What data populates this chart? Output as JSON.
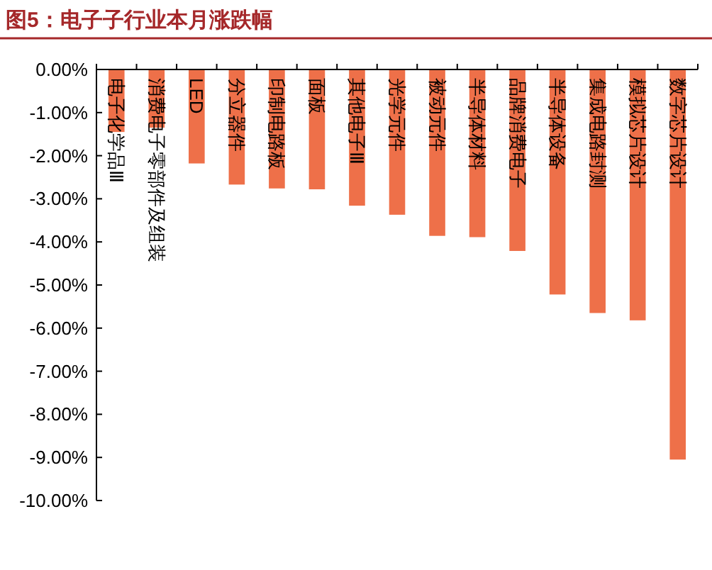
{
  "chart_data": {
    "type": "bar",
    "title": "图5：电子子行业本月涨跌幅",
    "categories": [
      "电子化学品Ⅲ",
      "消费电子零部件及组装",
      "LED",
      "分立器件",
      "印制电路板",
      "面板",
      "其他电子Ⅲ",
      "光学元件",
      "被动元件",
      "半导体材料",
      "品牌消费电子",
      "半导体设备",
      "集成电路封测",
      "模拟芯片设计",
      "数字芯片设计"
    ],
    "values": [
      -1.45,
      -1.35,
      -2.18,
      -2.67,
      -2.76,
      -2.78,
      -3.16,
      -3.37,
      -3.86,
      -3.89,
      -4.21,
      -5.22,
      -5.65,
      -5.82,
      -9.05
    ],
    "color": "#ee7049",
    "ylim": [
      -10,
      0
    ],
    "yticks": [
      {
        "value": 0,
        "label": "0.00%"
      },
      {
        "value": -1,
        "label": "-1.00%"
      },
      {
        "value": -2,
        "label": "-2.00%"
      },
      {
        "value": -3,
        "label": "-3.00%"
      },
      {
        "value": -4,
        "label": "-4.00%"
      },
      {
        "value": -5,
        "label": "-5.00%"
      },
      {
        "value": -6,
        "label": "-6.00%"
      },
      {
        "value": -7,
        "label": "-7.00%"
      },
      {
        "value": -8,
        "label": "-8.00%"
      },
      {
        "value": -9,
        "label": "-9.00%"
      },
      {
        "value": -10,
        "label": "-10.00%"
      }
    ],
    "grid": false
  }
}
